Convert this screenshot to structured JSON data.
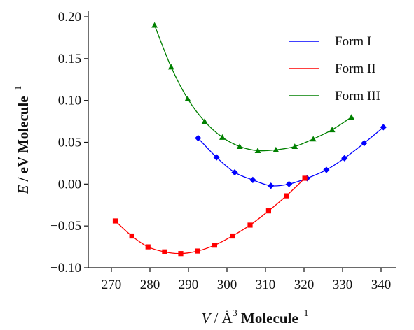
{
  "chart_data": {
    "type": "line",
    "xlabel": {
      "var": "V",
      "mid": " / Å",
      "sup": "3",
      "tail": " Molecule",
      "sup2": "−1"
    },
    "ylabel": {
      "var": "E",
      "mid": " / eV Molecule",
      "sup": "−1"
    },
    "xlim": [
      264,
      344
    ],
    "ylim": [
      -0.1,
      0.2
    ],
    "xticks": [
      270,
      280,
      290,
      300,
      310,
      320,
      330,
      340
    ],
    "yticks": [
      -0.1,
      -0.05,
      0.0,
      0.05,
      0.1,
      0.15,
      0.2
    ],
    "ytick_labels": [
      "−0.10",
      "−0.05",
      "0.00",
      "0.05",
      "0.10",
      "0.15",
      "0.20"
    ],
    "xtick_labels": [
      "270",
      "280",
      "290",
      "300",
      "310",
      "320",
      "330",
      "340"
    ],
    "legend_position": "top-right",
    "series": [
      {
        "name": "Form I",
        "color": "#0000ff",
        "marker": "diamond",
        "x": [
          292.5,
          297.3,
          302.0,
          306.7,
          311.4,
          316.1,
          320.8,
          325.8,
          330.5,
          335.6,
          340.6
        ],
        "y": [
          0.055,
          0.032,
          0.014,
          0.005,
          -0.002,
          0.0,
          0.007,
          0.017,
          0.031,
          0.049,
          0.068
        ]
      },
      {
        "name": "Form II",
        "color": "#ff0000",
        "marker": "square",
        "x": [
          271.0,
          275.3,
          279.5,
          283.8,
          288.0,
          292.4,
          296.8,
          301.4,
          306.0,
          310.8,
          315.4,
          320.2
        ],
        "y": [
          -0.044,
          -0.062,
          -0.075,
          -0.081,
          -0.083,
          -0.08,
          -0.073,
          -0.062,
          -0.049,
          -0.032,
          -0.014,
          0.007
        ]
      },
      {
        "name": "Form III",
        "color": "#008000",
        "marker": "triangle",
        "x": [
          281.2,
          285.5,
          289.8,
          294.2,
          298.8,
          303.3,
          308.0,
          312.7,
          317.6,
          322.4,
          327.3,
          332.3
        ],
        "y": [
          0.19,
          0.14,
          0.102,
          0.075,
          0.056,
          0.045,
          0.04,
          0.041,
          0.045,
          0.054,
          0.065,
          0.08
        ]
      }
    ]
  }
}
